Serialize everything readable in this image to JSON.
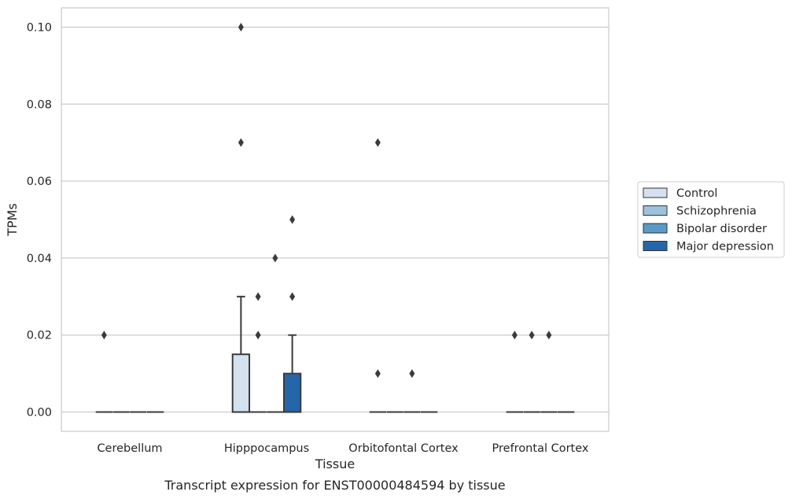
{
  "chart_data": {
    "type": "box",
    "xlabel": "Tissue",
    "ylabel": "TPMs",
    "caption": "Transcript expression for ENST00000484594 by tissue",
    "ylim": [
      -0.005,
      0.105
    ],
    "yticks": [
      0.0,
      0.02,
      0.04,
      0.06,
      0.08,
      0.1
    ],
    "ytick_labels": [
      "0.00",
      "0.02",
      "0.04",
      "0.06",
      "0.08",
      "0.10"
    ],
    "categories": [
      "Cerebellum",
      "Hipppocampus",
      "Orbitofontal Cortex",
      "Prefrontal Cortex"
    ],
    "grid": true,
    "legend_position": "center-right",
    "series": [
      {
        "name": "Control",
        "color": "#d3e1f0",
        "boxes": [
          {
            "q1": 0,
            "median": 0,
            "q3": 0,
            "whisker_low": 0,
            "whisker_high": 0,
            "outliers": [
              0.02
            ]
          },
          {
            "q1": 0,
            "median": 0,
            "q3": 0.015,
            "whisker_low": 0,
            "whisker_high": 0.03,
            "outliers": [
              0.07,
              0.1
            ]
          },
          {
            "q1": 0,
            "median": 0,
            "q3": 0,
            "whisker_low": 0,
            "whisker_high": 0,
            "outliers": [
              0.01,
              0.07
            ]
          },
          {
            "q1": 0,
            "median": 0,
            "q3": 0,
            "whisker_low": 0,
            "whisker_high": 0,
            "outliers": [
              0.02
            ]
          }
        ]
      },
      {
        "name": "Schizophrenia",
        "color": "#9dc3dc",
        "boxes": [
          {
            "q1": 0,
            "median": 0,
            "q3": 0,
            "whisker_low": 0,
            "whisker_high": 0,
            "outliers": []
          },
          {
            "q1": 0,
            "median": 0,
            "q3": 0,
            "whisker_low": 0,
            "whisker_high": 0,
            "outliers": [
              0.02,
              0.03
            ]
          },
          {
            "q1": 0,
            "median": 0,
            "q3": 0,
            "whisker_low": 0,
            "whisker_high": 0,
            "outliers": []
          },
          {
            "q1": 0,
            "median": 0,
            "q3": 0,
            "whisker_low": 0,
            "whisker_high": 0,
            "outliers": [
              0.02
            ]
          }
        ]
      },
      {
        "name": "Bipolar disorder",
        "color": "#5a9ac6",
        "boxes": [
          {
            "q1": 0,
            "median": 0,
            "q3": 0,
            "whisker_low": 0,
            "whisker_high": 0,
            "outliers": []
          },
          {
            "q1": 0,
            "median": 0,
            "q3": 0,
            "whisker_low": 0,
            "whisker_high": 0,
            "outliers": [
              0.04
            ]
          },
          {
            "q1": 0,
            "median": 0,
            "q3": 0,
            "whisker_low": 0,
            "whisker_high": 0,
            "outliers": [
              0.01
            ]
          },
          {
            "q1": 0,
            "median": 0,
            "q3": 0,
            "whisker_low": 0,
            "whisker_high": 0,
            "outliers": [
              0.02
            ]
          }
        ]
      },
      {
        "name": "Major depression",
        "color": "#2466a9",
        "boxes": [
          {
            "q1": 0,
            "median": 0,
            "q3": 0,
            "whisker_low": 0,
            "whisker_high": 0,
            "outliers": []
          },
          {
            "q1": 0,
            "median": 0,
            "q3": 0.01,
            "whisker_low": 0,
            "whisker_high": 0.02,
            "outliers": [
              0.03,
              0.05
            ]
          },
          {
            "q1": 0,
            "median": 0,
            "q3": 0,
            "whisker_low": 0,
            "whisker_high": 0,
            "outliers": []
          },
          {
            "q1": 0,
            "median": 0,
            "q3": 0,
            "whisker_low": 0,
            "whisker_high": 0,
            "outliers": []
          }
        ]
      }
    ]
  }
}
